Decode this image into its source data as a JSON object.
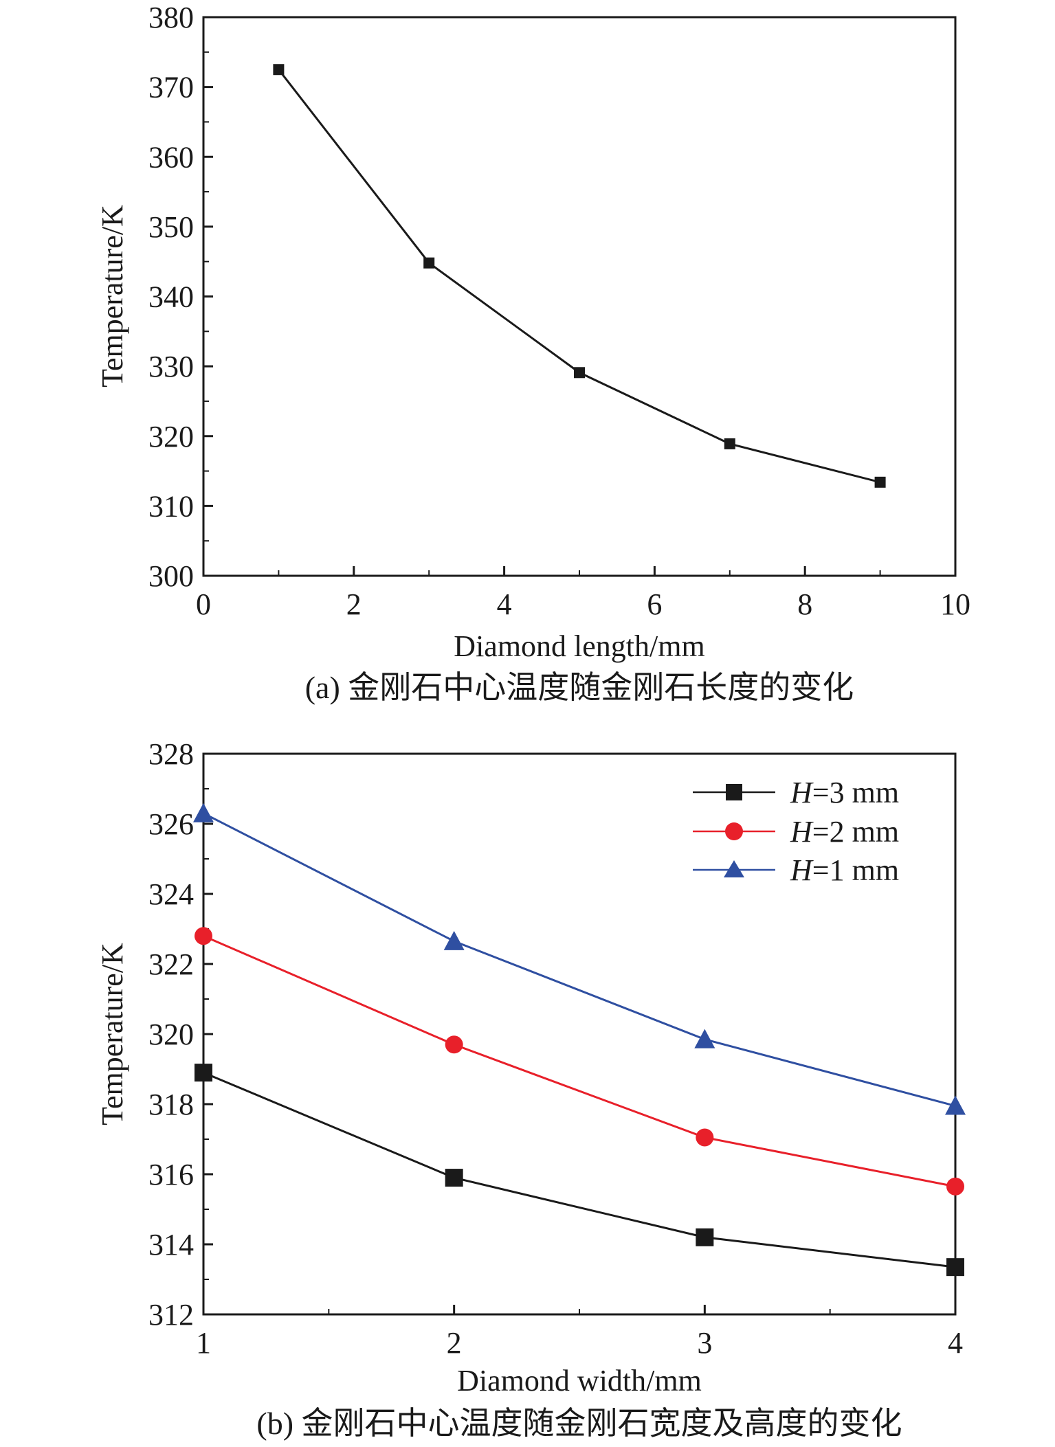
{
  "chart_data": [
    {
      "type": "line",
      "caption": "(a) 金刚石中心温度随金刚石长度的变化",
      "xlabel": "Diamond length/mm",
      "ylabel": "Temperature/K",
      "xlim": [
        0,
        10
      ],
      "ylim": [
        300,
        380
      ],
      "xticks": [
        "0",
        "2",
        "4",
        "6",
        "8",
        "10"
      ],
      "yticks": [
        "300",
        "310",
        "320",
        "330",
        "340",
        "350",
        "360",
        "370",
        "380"
      ],
      "series": [
        {
          "name": "",
          "color": "#1a1a1a",
          "marker": "square",
          "x": [
            1,
            3,
            5,
            7,
            9
          ],
          "values": [
            372.5,
            344.8,
            329.1,
            318.9,
            313.4
          ]
        }
      ]
    },
    {
      "type": "line",
      "caption": "(b) 金刚石中心温度随金刚石宽度及高度的变化",
      "xlabel": "Diamond width/mm",
      "ylabel": "Temperature/K",
      "xlim": [
        1,
        4
      ],
      "ylim": [
        312,
        328
      ],
      "xticks": [
        "1",
        "2",
        "3",
        "4"
      ],
      "yticks": [
        "312",
        "314",
        "316",
        "318",
        "320",
        "322",
        "324",
        "326",
        "328"
      ],
      "legend_position": "top-right",
      "series": [
        {
          "name": "H=3 mm",
          "legend_var": "H",
          "legend_rest": "=3 mm",
          "color": "#1a1a1a",
          "marker": "square",
          "x": [
            1,
            2,
            3,
            4
          ],
          "values": [
            318.9,
            315.9,
            314.2,
            313.35
          ]
        },
        {
          "name": "H=2 mm",
          "legend_var": "H",
          "legend_rest": "=2 mm",
          "color": "#e8202a",
          "marker": "circle",
          "x": [
            1,
            2,
            3,
            4
          ],
          "values": [
            322.8,
            319.7,
            317.05,
            315.65
          ]
        },
        {
          "name": "H=1 mm",
          "legend_var": "H",
          "legend_rest": "=1 mm",
          "color": "#2f4fa1",
          "marker": "triangle",
          "x": [
            1,
            2,
            3,
            4
          ],
          "values": [
            326.3,
            322.65,
            319.85,
            317.95
          ]
        }
      ]
    }
  ]
}
